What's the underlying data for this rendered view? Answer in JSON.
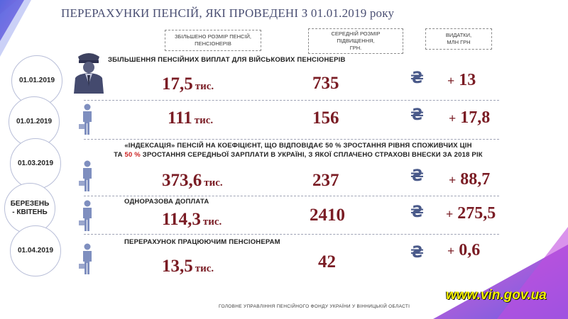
{
  "title": "ПЕРЕРАХУНКИ ПЕНСІЙ, ЯКІ ПРОВЕДЕНІ З 01.01.2019 року",
  "headers": {
    "col1": [
      "ЗБІЛЬШЕНО РОЗМІР ПЕНСІЙ,",
      "ПЕНСІОНЕРІВ"
    ],
    "col2": [
      "СЕРЕДНІЙ РОЗМІР",
      "ПІДВИЩЕННЯ,",
      "ГРН."
    ],
    "col3": [
      "ВИДАТКИ,",
      "МЛН ГРН"
    ]
  },
  "currency_symbol": "₴",
  "sections": {
    "military": "ЗБІЛЬШЕННЯ ПЕНСІЙНИХ ВИПЛАТ ДЛЯ ВІЙСЬКОВИХ ПЕНСІОНЕРІВ",
    "indexation_line1": "«ІНДЕКСАЦІЯ» ПЕНСІЙ НА КОЕФІЦІЄНТ, ЩО ВІДПОВІДАЄ 50 % ЗРОСТАННЯ РІВНЯ СПОЖИВЧИХ ЦІН",
    "indexation_line2_a": "ТА ",
    "indexation_line2_pct": "50 %",
    "indexation_line2_b": " ЗРОСТАННЯ СЕРЕДНЬОЇ ЗАРПЛАТИ В УКРАЇНІ, З ЯКОЇ СПЛАЧЕНО СТРАХОВІ ВНЕСКИ ЗА 2018 РІК",
    "one_time": "ОДНОРАЗОВА ДОПЛАТА",
    "working": "ПЕРЕРАХУНОК ПРАЦЮЮЧИМ ПЕНСІОНЕРАМ"
  },
  "rows": [
    {
      "date": "01.01.2019",
      "date2": "",
      "count": "17,5",
      "unit": "тис.",
      "avg": "735",
      "plus": "+",
      "exp": "13"
    },
    {
      "date": "01.01.2019",
      "date2": "",
      "count": "111",
      "unit": "тис.",
      "avg": "156",
      "plus": "+",
      "exp": "17,8"
    },
    {
      "date": "01.03.2019",
      "date2": "",
      "count": "373,6",
      "unit": "тис.",
      "avg": "237",
      "plus": "+",
      "exp": "88,7"
    },
    {
      "date": "БЕРЕЗЕНЬ",
      "date2": "- КВІТЕНЬ",
      "count": "114,3",
      "unit": "тис.",
      "avg": "2410",
      "plus": "+",
      "exp": "275,5"
    },
    {
      "date": "01.04.2019",
      "date2": "",
      "count": "13,5",
      "unit": "тис.",
      "avg": "42",
      "plus": "+",
      "exp": "0,6"
    }
  ],
  "footer": "ГОЛОВНЕ УПРАВЛІННЯ ПЕНСІЙНОГО ФОНДУ УКРАЇНИ У ВІННИЦЬКІЙ ОБЛАСТІ",
  "website": "www.vin.gov.ua",
  "colors": {
    "accent": "#7a1c24",
    "title": "#4a4f73",
    "corner": "#4b5bd6",
    "icon": "#7f8fbf"
  }
}
